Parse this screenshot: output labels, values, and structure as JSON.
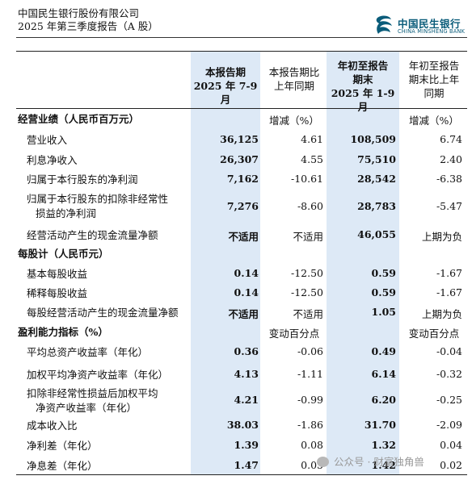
{
  "header": {
    "company": "中国民生银行股份有限公司",
    "report": "2025 年第三季度报告（A 股）"
  },
  "logo": {
    "cn": "中国民生银行",
    "en": "CHINA MINSHENG BANK",
    "icon": "minsheng-logo-icon"
  },
  "columns": {
    "c1": [
      "本报告期",
      "2025 年 7-9 月"
    ],
    "c2": [
      "本报告期比",
      "上年同期"
    ],
    "c3": [
      "年初至报告",
      "期末",
      "2025 年 1-9 月"
    ],
    "c4": [
      "年初至报告",
      "期末比上年",
      "同期"
    ]
  },
  "sections": {
    "performance": {
      "title": "经营业绩（人民币百万元）",
      "c2": "增减（%）",
      "c4": "增减（%）"
    },
    "per_share": {
      "title": "每股计（人民币元）"
    },
    "profitability": {
      "title": "盈利能力指标（%）",
      "c2": "变动百分点",
      "c4": "变动百分点"
    }
  },
  "rows": [
    {
      "label": "营业收入",
      "c1": "36,125",
      "c2": "4.61",
      "c3": "108,509",
      "c4": "6.74"
    },
    {
      "label": "利息净收入",
      "c1": "26,307",
      "c2": "4.55",
      "c3": "75,510",
      "c4": "2.40"
    },
    {
      "label": "归属于本行股东的净利润",
      "c1": "7,162",
      "c2": "-10.61",
      "c3": "28,542",
      "c4": "-6.38"
    },
    {
      "label1": "归属于本行股东的扣除非经常性",
      "label2": "损益的净利润",
      "c1": "7,276",
      "c2": "-8.60",
      "c3": "28,783",
      "c4": "-5.47"
    },
    {
      "label": "经营活动产生的现金流量净额",
      "c1": "不适用",
      "c2": "不适用",
      "c3": "46,055",
      "c4": "上期为负"
    },
    {
      "label": "基本每股收益",
      "c1": "0.14",
      "c2": "-12.50",
      "c3": "0.59",
      "c4": "-1.67"
    },
    {
      "label": "稀释每股收益",
      "c1": "0.14",
      "c2": "-12.50",
      "c3": "0.59",
      "c4": "-1.67"
    },
    {
      "label": "每股经营活动产生的现金流量净额",
      "c1": "不适用",
      "c2": "不适用",
      "c3": "1.05",
      "c4": "上期为负"
    },
    {
      "label": "平均总资产收益率（年化）",
      "c1": "0.36",
      "c2": "-0.06",
      "c3": "0.49",
      "c4": "-0.04"
    },
    {
      "label": "加权平均净资产收益率（年化）",
      "c1": "4.13",
      "c2": "-1.11",
      "c3": "6.14",
      "c4": "-0.32"
    },
    {
      "label1": "扣除非经常性损益后加权平均",
      "label2": "净资产收益率（年化）",
      "c1": "4.21",
      "c2": "-0.99",
      "c3": "6.20",
      "c4": "-0.25"
    },
    {
      "label": "成本收入比",
      "c1": "38.03",
      "c2": "-1.86",
      "c3": "31.70",
      "c4": "-2.09"
    },
    {
      "label": "净利差（年化）",
      "c1": "1.39",
      "c2": "0.08",
      "c3": "1.32",
      "c4": "0.04"
    },
    {
      "label": "净息差（年化）",
      "c1": "1.47",
      "c2": "0.05",
      "c3": "1.42",
      "c4": "0.02"
    }
  ],
  "watermark": "公众号 · 财富独角兽",
  "colors": {
    "shade": "#dde9f6",
    "logo": "#0a5c7a"
  }
}
